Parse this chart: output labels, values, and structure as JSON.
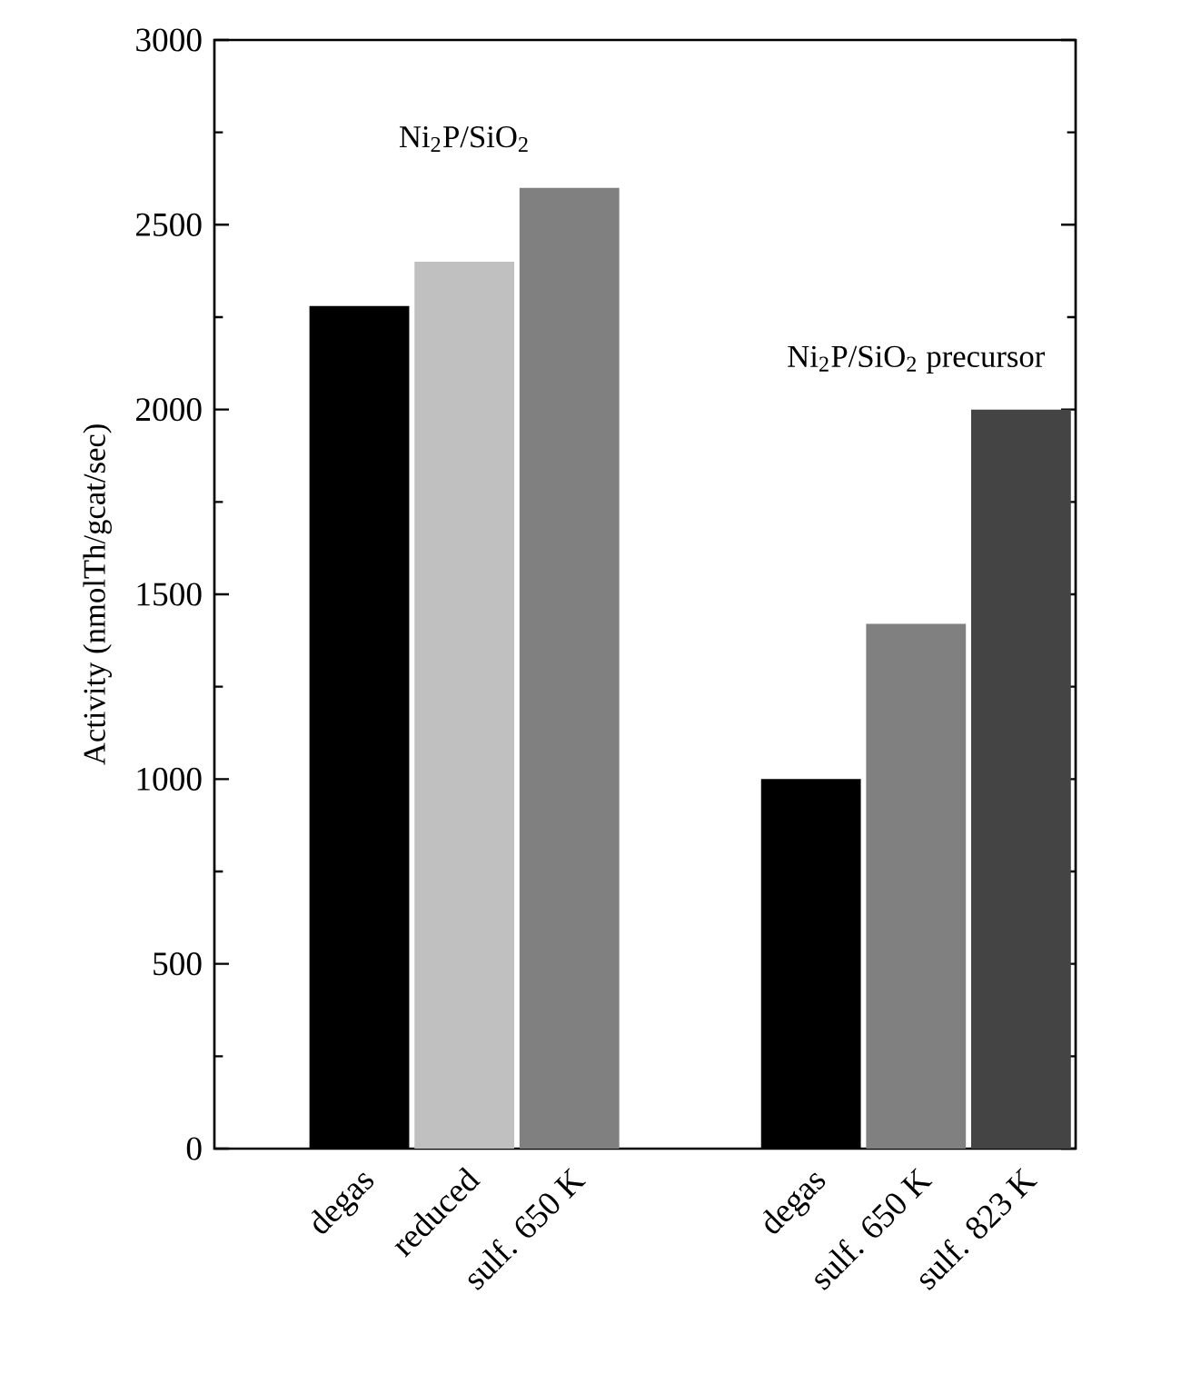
{
  "chart_data": {
    "type": "bar",
    "categories": [
      "degas",
      "reduced",
      "sulf. 650 K",
      "degas",
      "sulf. 650 K",
      "sulf. 823 K"
    ],
    "values": [
      2280,
      2400,
      2600,
      1000,
      1420,
      2000
    ],
    "colors": [
      "#000000",
      "#c0c0c0",
      "#808080",
      "#000000",
      "#808080",
      "#444444"
    ],
    "ylabel": "Activity (nmolTh/gcat/sec)",
    "ylim": [
      0,
      3000
    ],
    "yticks": [
      0,
      500,
      1000,
      1500,
      2000,
      2500,
      3000
    ],
    "annotations": [
      "Ni$_{2}$P/SiO$_{2}$",
      "Ni$_{2}$P/SiO$_{2}$ precursor"
    ]
  }
}
